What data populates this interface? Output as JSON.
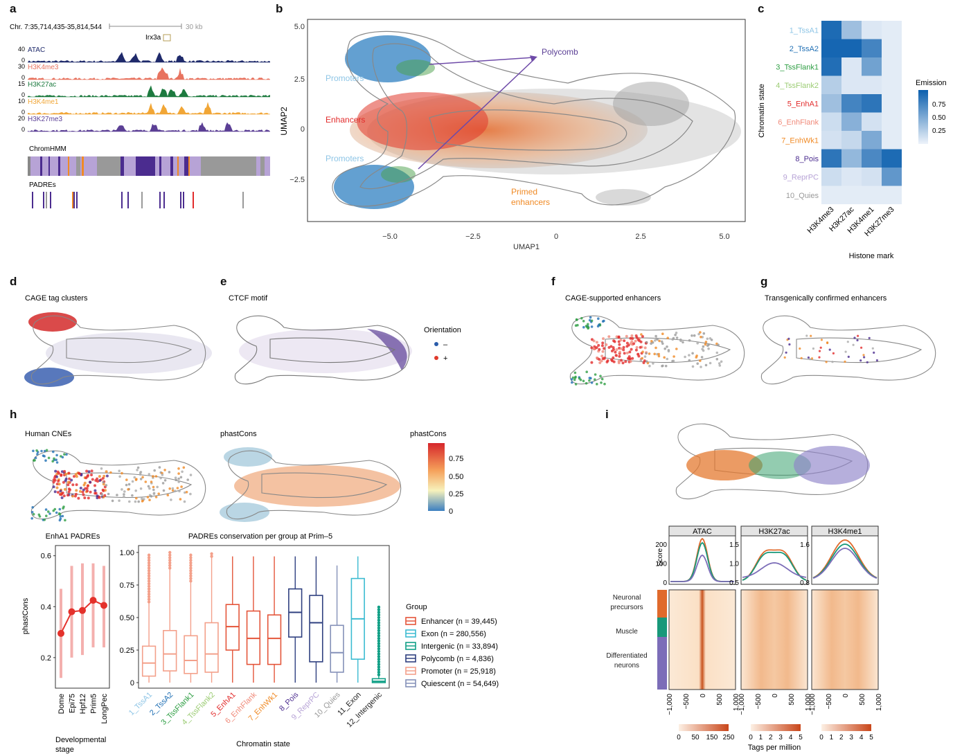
{
  "colors": {
    "atac": "#1f2a6b",
    "h3k4me3": "#e8735f",
    "h3k27ac": "#1d7a3f",
    "h3k4me1": "#f1a636",
    "h3k27me3": "#5b3f95",
    "tssa1": "#8ec5e6",
    "tssa2": "#1f6fb4",
    "tssflank1": "#2e9e43",
    "tssflank2": "#9ccc74",
    "enha1": "#e22b2b",
    "enhflank": "#f08a7a",
    "enhwk1": "#f08a25",
    "pois": "#4b2c8f",
    "reprpc": "#b7a3d6",
    "quies": "#999999",
    "exon": "#3bbbd1",
    "intergenic": "#12a087",
    "polycomb_grp": "#2e3f7f",
    "promoter_grp": "#f3a08a",
    "quiescent_grp": "#8490b8",
    "enhancer_grp": "#e4553a"
  },
  "panels": {
    "a": "a",
    "b": "b",
    "c": "c",
    "d": "d",
    "e": "e",
    "f": "f",
    "g": "g",
    "h": "h",
    "i": "i"
  },
  "panel_a": {
    "coord": "Chr. 7:35,714,435-35,814,544",
    "scale": "30 kb",
    "gene": "Irx3a",
    "tracks": [
      {
        "name": "ATAC",
        "max": "40",
        "min": "0"
      },
      {
        "name": "H3K4me3",
        "max": "30",
        "min": "0"
      },
      {
        "name": "H3K27ac",
        "max": "15",
        "min": "0"
      },
      {
        "name": "H3K4me1",
        "max": "10",
        "min": "0"
      },
      {
        "name": "H3K27me3",
        "max": "20",
        "min": "0"
      }
    ],
    "chromhmm": "ChromHMM",
    "padres": "PADREs"
  },
  "panel_b": {
    "xlabel": "UMAP1",
    "ylabel": "UMAP2",
    "xticks": [
      "−5.0",
      "−2.5",
      "0",
      "2.5",
      "5.0"
    ],
    "yticks": [
      "5.0",
      "2.5",
      "0",
      "−2.5"
    ],
    "annotations": {
      "promoters_top": "Promoters",
      "enhancers": "Enhancers",
      "promoters_bottom": "Promoters",
      "polycomb": "Polycomb",
      "primed1": "Primed",
      "primed2": "enhancers"
    }
  },
  "chart_data": [
    {
      "type": "heatmap",
      "panel": "c",
      "ylabel": "Chromatin state",
      "xlabel": "Histone mark",
      "columns": [
        "H3K4me3",
        "H3K27ac",
        "H3K4me1",
        "H3K27me3"
      ],
      "rows": [
        "1_TssA1",
        "2_TssA2",
        "3_TssFlank1",
        "4_TssFlank2",
        "5_EnhA1",
        "6_EnhFlank",
        "7_EnhWk1",
        "8_Pois",
        "9_ReprPC",
        "10_Quies"
      ],
      "values": [
        [
          0.92,
          0.35,
          0.08,
          0.05
        ],
        [
          0.95,
          0.95,
          0.75,
          0.05
        ],
        [
          0.9,
          0.08,
          0.55,
          0.05
        ],
        [
          0.25,
          0.08,
          0.08,
          0.05
        ],
        [
          0.35,
          0.75,
          0.85,
          0.05
        ],
        [
          0.15,
          0.45,
          0.12,
          0.05
        ],
        [
          0.12,
          0.18,
          0.5,
          0.05
        ],
        [
          0.85,
          0.4,
          0.72,
          0.92
        ],
        [
          0.15,
          0.08,
          0.12,
          0.62
        ],
        [
          0.05,
          0.05,
          0.05,
          0.05
        ]
      ],
      "legend_title": "Emission",
      "legend_ticks": [
        "0.75",
        "0.50",
        "0.25"
      ],
      "vlim": [
        0,
        1
      ]
    },
    {
      "type": "line",
      "panel": "h-left",
      "title": "EnhA1 PADREs",
      "ylabel": "phastCons",
      "xlabel1": "Developmental",
      "xlabel2": "stage",
      "categories": [
        "Dome",
        "Epi75",
        "Hpf12",
        "Prim5",
        "LongPec"
      ],
      "values": [
        0.295,
        0.38,
        0.385,
        0.425,
        0.405
      ],
      "lower": [
        0.12,
        0.2,
        0.21,
        0.24,
        0.24
      ],
      "upper": [
        0.47,
        0.56,
        0.57,
        0.57,
        0.56
      ],
      "ylim": [
        0.08,
        0.64
      ],
      "yticks": [
        "0.6",
        "0.4",
        "0.2"
      ]
    },
    {
      "type": "box",
      "panel": "h-right",
      "title": "PADREs conservation per group at Prim–5",
      "xlabel": "Chromatin state",
      "ylim": [
        0,
        1
      ],
      "yticks": [
        "1.00",
        "0.75",
        "0.50",
        "0.25",
        "0"
      ],
      "categories": [
        "1_TssA1",
        "2_TssA2",
        "3_TssFlank1",
        "4_TssFlank2",
        "5_EnhA1",
        "6_EnhFlank",
        "7_EnhWk1",
        "8_Pois",
        "9_ReprPC",
        "10_Quies",
        "11_Exon",
        "12_Intergenic"
      ],
      "boxes": [
        {
          "min": 0,
          "q1": 0.05,
          "median": 0.15,
          "q3": 0.28,
          "max": 0.62,
          "group": "promoter"
        },
        {
          "min": 0,
          "q1": 0.09,
          "median": 0.22,
          "q3": 0.4,
          "max": 0.88,
          "group": "promoter"
        },
        {
          "min": 0,
          "q1": 0.07,
          "median": 0.17,
          "q3": 0.36,
          "max": 0.78,
          "group": "promoter"
        },
        {
          "min": 0,
          "q1": 0.08,
          "median": 0.22,
          "q3": 0.46,
          "max": 0.97,
          "group": "promoter"
        },
        {
          "min": 0,
          "q1": 0.25,
          "median": 0.43,
          "q3": 0.6,
          "max": 0.97,
          "group": "enhancer"
        },
        {
          "min": 0,
          "q1": 0.14,
          "median": 0.34,
          "q3": 0.55,
          "max": 0.97,
          "group": "enhancer"
        },
        {
          "min": 0,
          "q1": 0.14,
          "median": 0.34,
          "q3": 0.52,
          "max": 0.97,
          "group": "enhancer"
        },
        {
          "min": 0,
          "q1": 0.35,
          "median": 0.54,
          "q3": 0.72,
          "max": 0.97,
          "group": "polycomb"
        },
        {
          "min": 0,
          "q1": 0.16,
          "median": 0.46,
          "q3": 0.67,
          "max": 0.97,
          "group": "polycomb"
        },
        {
          "min": 0,
          "q1": 0.08,
          "median": 0.23,
          "q3": 0.44,
          "max": 0.9,
          "group": "quiescent"
        },
        {
          "min": 0,
          "q1": 0.18,
          "median": 0.49,
          "q3": 0.8,
          "max": 0.97,
          "group": "exon"
        },
        {
          "min": 0,
          "q1": 0.0,
          "median": 0.01,
          "q3": 0.03,
          "max": 0.06,
          "group": "intergenic"
        }
      ],
      "legend_title": "Group",
      "legend": [
        {
          "label": "Enhancer (n = 39,445)",
          "group": "enhancer"
        },
        {
          "label": "Exon (n = 280,556)",
          "group": "exon"
        },
        {
          "label": "Intergenic (n = 33,894)",
          "group": "intergenic"
        },
        {
          "label": "Polycomb (n = 4,836)",
          "group": "polycomb"
        },
        {
          "label": "Promoter (n = 25,918)",
          "group": "promoter"
        },
        {
          "label": "Quiescent (n = 54,649)",
          "group": "quiescent"
        }
      ]
    }
  ],
  "panel_d": {
    "title": "CAGE tag clusters",
    "legend_title": "Orientation",
    "minus": "–",
    "plus": "+"
  },
  "panel_e": {
    "title": "CTCF motif"
  },
  "panel_f": {
    "title": "CAGE-supported enhancers"
  },
  "panel_g": {
    "title": "Transgenically confirmed enhancers"
  },
  "panel_h": {
    "left_title": "Human CNEs",
    "right_title": "phastCons",
    "legend_title": "phastCons",
    "legend_ticks": [
      "0.75",
      "0.50",
      "0.25",
      "0"
    ]
  },
  "panel_i": {
    "columns": [
      "ATAC",
      "H3K27ac",
      "H3K4me1"
    ],
    "score_label": "Score",
    "atac_ticks": [
      "200",
      "100",
      "0"
    ],
    "k27ac_ticks": [
      "1.5",
      "1.0",
      "0.5"
    ],
    "k4me1_ticks": [
      "1.6",
      "0.8"
    ],
    "x_ticks": [
      "−1,000",
      "−500",
      "0",
      "500",
      "1,000"
    ],
    "groups": [
      "Neuronal",
      "precursors",
      "Muscle",
      "Differentiated",
      "neurons"
    ],
    "scale_atac": [
      "0",
      "50",
      "150",
      "250"
    ],
    "scale_other": [
      "0",
      "1",
      "2",
      "3",
      "4",
      "5"
    ],
    "tags_label": "Tags per million"
  }
}
